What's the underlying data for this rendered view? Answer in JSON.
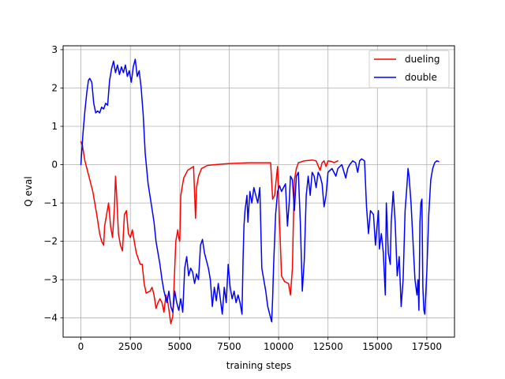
{
  "chart_data": {
    "type": "line",
    "title": "",
    "xlabel": "training steps",
    "ylabel": "Q eval",
    "xlim": [
      -900,
      18900
    ],
    "ylim": [
      -4.5,
      3.1
    ],
    "xticks": [
      0,
      2500,
      5000,
      7500,
      10000,
      12500,
      15000,
      17500
    ],
    "xtick_labels": [
      "0",
      "2500",
      "5000",
      "7500",
      "10000",
      "12500",
      "15000",
      "17500"
    ],
    "yticks": [
      -4,
      -3,
      -2,
      -1,
      0,
      1,
      2,
      3
    ],
    "ytick_labels": [
      "−4",
      "−3",
      "−2",
      "−1",
      "0",
      "1",
      "2",
      "3"
    ],
    "grid": true,
    "legend": "top-right",
    "series": [
      {
        "name": "dueling",
        "color": "#ff0000",
        "points": [
          [
            0,
            0.6
          ],
          [
            80,
            0.5
          ],
          [
            200,
            0.1
          ],
          [
            400,
            -0.3
          ],
          [
            600,
            -0.7
          ],
          [
            800,
            -1.3
          ],
          [
            950,
            -1.8
          ],
          [
            1050,
            -2.0
          ],
          [
            1150,
            -2.1
          ],
          [
            1200,
            -1.6
          ],
          [
            1300,
            -1.3
          ],
          [
            1400,
            -1.0
          ],
          [
            1500,
            -1.6
          ],
          [
            1600,
            -1.9
          ],
          [
            1700,
            -1.1
          ],
          [
            1750,
            -0.3
          ],
          [
            1800,
            -0.7
          ],
          [
            1900,
            -1.8
          ],
          [
            2000,
            -2.1
          ],
          [
            2100,
            -2.25
          ],
          [
            2200,
            -1.3
          ],
          [
            2300,
            -1.2
          ],
          [
            2400,
            -1.8
          ],
          [
            2500,
            -1.9
          ],
          [
            2600,
            -1.7
          ],
          [
            2700,
            -2.0
          ],
          [
            2800,
            -2.3
          ],
          [
            3000,
            -2.6
          ],
          [
            3100,
            -2.6
          ],
          [
            3200,
            -3.1
          ],
          [
            3300,
            -3.35
          ],
          [
            3500,
            -3.3
          ],
          [
            3600,
            -3.2
          ],
          [
            3700,
            -3.4
          ],
          [
            3800,
            -3.75
          ],
          [
            3900,
            -3.6
          ],
          [
            4000,
            -3.5
          ],
          [
            4100,
            -3.6
          ],
          [
            4200,
            -3.85
          ],
          [
            4300,
            -3.4
          ],
          [
            4400,
            -3.6
          ],
          [
            4550,
            -4.15
          ],
          [
            4650,
            -3.95
          ],
          [
            4700,
            -3.3
          ],
          [
            4800,
            -2.0
          ],
          [
            4900,
            -1.7
          ],
          [
            4950,
            -1.9
          ],
          [
            5000,
            -2.0
          ],
          [
            5050,
            -0.8
          ],
          [
            5200,
            -0.35
          ],
          [
            5400,
            -0.15
          ],
          [
            5600,
            -0.08
          ],
          [
            5700,
            -0.05
          ],
          [
            5800,
            -1.4
          ],
          [
            5850,
            -0.6
          ],
          [
            5950,
            -0.3
          ],
          [
            6100,
            -0.1
          ],
          [
            6400,
            -0.02
          ],
          [
            6800,
            0.0
          ],
          [
            7500,
            0.03
          ],
          [
            8000,
            0.04
          ],
          [
            8500,
            0.05
          ],
          [
            9000,
            0.05
          ],
          [
            9600,
            0.05
          ],
          [
            9700,
            -0.9
          ],
          [
            9800,
            -0.8
          ],
          [
            9900,
            -0.3
          ],
          [
            9950,
            -0.05
          ],
          [
            10050,
            -1.5
          ],
          [
            10150,
            -2.9
          ],
          [
            10300,
            -3.05
          ],
          [
            10500,
            -3.1
          ],
          [
            10600,
            -3.4
          ],
          [
            10700,
            -2.7
          ],
          [
            10750,
            -1.5
          ],
          [
            10800,
            -0.4
          ],
          [
            10900,
            -0.1
          ],
          [
            11000,
            0.05
          ],
          [
            11300,
            0.1
          ],
          [
            11700,
            0.12
          ],
          [
            11900,
            0.1
          ],
          [
            12100,
            -0.15
          ],
          [
            12200,
            0.05
          ],
          [
            12300,
            0.1
          ],
          [
            12400,
            -0.05
          ],
          [
            12500,
            0.1
          ],
          [
            12700,
            0.08
          ],
          [
            12800,
            0.05
          ],
          [
            13000,
            0.1
          ]
        ]
      },
      {
        "name": "double",
        "color": "#0000ff",
        "points": [
          [
            0,
            0.0
          ],
          [
            100,
            0.8
          ],
          [
            200,
            1.4
          ],
          [
            300,
            1.9
          ],
          [
            380,
            2.2
          ],
          [
            450,
            2.25
          ],
          [
            550,
            2.15
          ],
          [
            650,
            1.6
          ],
          [
            750,
            1.35
          ],
          [
            850,
            1.4
          ],
          [
            950,
            1.35
          ],
          [
            1050,
            1.5
          ],
          [
            1150,
            1.45
          ],
          [
            1250,
            1.6
          ],
          [
            1350,
            1.55
          ],
          [
            1450,
            2.2
          ],
          [
            1550,
            2.5
          ],
          [
            1650,
            2.7
          ],
          [
            1750,
            2.4
          ],
          [
            1850,
            2.6
          ],
          [
            1950,
            2.35
          ],
          [
            2050,
            2.55
          ],
          [
            2150,
            2.4
          ],
          [
            2250,
            2.6
          ],
          [
            2350,
            2.3
          ],
          [
            2450,
            2.45
          ],
          [
            2550,
            2.15
          ],
          [
            2650,
            2.55
          ],
          [
            2750,
            2.75
          ],
          [
            2850,
            2.3
          ],
          [
            2950,
            2.45
          ],
          [
            3050,
            2.0
          ],
          [
            3150,
            1.3
          ],
          [
            3250,
            0.3
          ],
          [
            3400,
            -0.5
          ],
          [
            3550,
            -1.0
          ],
          [
            3700,
            -1.5
          ],
          [
            3800,
            -2.0
          ],
          [
            3900,
            -2.3
          ],
          [
            4000,
            -2.6
          ],
          [
            4100,
            -3.0
          ],
          [
            4200,
            -3.3
          ],
          [
            4350,
            -3.6
          ],
          [
            4450,
            -3.3
          ],
          [
            4550,
            -3.7
          ],
          [
            4650,
            -3.85
          ],
          [
            4750,
            -3.3
          ],
          [
            4850,
            -3.6
          ],
          [
            4950,
            -3.8
          ],
          [
            5050,
            -3.5
          ],
          [
            5150,
            -3.85
          ],
          [
            5250,
            -2.7
          ],
          [
            5350,
            -2.4
          ],
          [
            5450,
            -2.9
          ],
          [
            5550,
            -2.7
          ],
          [
            5650,
            -2.8
          ],
          [
            5750,
            -3.1
          ],
          [
            5850,
            -2.85
          ],
          [
            5950,
            -3.0
          ],
          [
            6050,
            -2.1
          ],
          [
            6150,
            -1.95
          ],
          [
            6250,
            -2.3
          ],
          [
            6350,
            -2.5
          ],
          [
            6450,
            -2.7
          ],
          [
            6550,
            -3.0
          ],
          [
            6650,
            -3.7
          ],
          [
            6750,
            -3.2
          ],
          [
            6850,
            -3.55
          ],
          [
            6950,
            -3.1
          ],
          [
            7050,
            -3.5
          ],
          [
            7150,
            -3.9
          ],
          [
            7250,
            -3.2
          ],
          [
            7350,
            -3.6
          ],
          [
            7450,
            -2.6
          ],
          [
            7550,
            -3.2
          ],
          [
            7650,
            -3.5
          ],
          [
            7750,
            -3.3
          ],
          [
            7850,
            -3.6
          ],
          [
            7950,
            -3.4
          ],
          [
            8050,
            -3.6
          ],
          [
            8150,
            -3.9
          ],
          [
            8200,
            -2.5
          ],
          [
            8250,
            -1.6
          ],
          [
            8300,
            -1.2
          ],
          [
            8400,
            -0.8
          ],
          [
            8450,
            -1.5
          ],
          [
            8550,
            -0.7
          ],
          [
            8650,
            -1.0
          ],
          [
            8750,
            -0.6
          ],
          [
            8850,
            -0.8
          ],
          [
            8950,
            -1.0
          ],
          [
            9050,
            -0.6
          ],
          [
            9150,
            -2.7
          ],
          [
            9250,
            -3.0
          ],
          [
            9350,
            -3.3
          ],
          [
            9450,
            -3.7
          ],
          [
            9550,
            -3.9
          ],
          [
            9650,
            -4.1
          ],
          [
            9700,
            -3.5
          ],
          [
            9750,
            -2.6
          ],
          [
            9850,
            -1.3
          ],
          [
            9950,
            -0.7
          ],
          [
            10050,
            -0.55
          ],
          [
            10150,
            -0.7
          ],
          [
            10250,
            -0.6
          ],
          [
            10350,
            -0.5
          ],
          [
            10450,
            -1.6
          ],
          [
            10550,
            -0.9
          ],
          [
            10600,
            -0.3
          ],
          [
            10700,
            -0.4
          ],
          [
            10800,
            -1.2
          ],
          [
            10900,
            -0.3
          ],
          [
            11000,
            -0.2
          ],
          [
            11100,
            -1.5
          ],
          [
            11200,
            -3.3
          ],
          [
            11300,
            -2.5
          ],
          [
            11400,
            -0.8
          ],
          [
            11500,
            -0.3
          ],
          [
            11600,
            -0.8
          ],
          [
            11700,
            -0.2
          ],
          [
            11800,
            -0.3
          ],
          [
            11900,
            -0.6
          ],
          [
            12000,
            -0.2
          ],
          [
            12100,
            -0.3
          ],
          [
            12200,
            -0.5
          ],
          [
            12300,
            -1.1
          ],
          [
            12400,
            -0.8
          ],
          [
            12500,
            -0.2
          ],
          [
            12700,
            -0.1
          ],
          [
            12900,
            -0.3
          ],
          [
            13000,
            -0.1
          ],
          [
            13200,
            0.0
          ],
          [
            13400,
            -0.35
          ],
          [
            13500,
            -0.1
          ],
          [
            13600,
            0.0
          ],
          [
            13750,
            0.1
          ],
          [
            13900,
            0.05
          ],
          [
            14000,
            -0.2
          ],
          [
            14100,
            0.1
          ],
          [
            14200,
            0.15
          ],
          [
            14350,
            0.1
          ],
          [
            14450,
            -1.1
          ],
          [
            14550,
            -1.8
          ],
          [
            14650,
            -1.2
          ],
          [
            14800,
            -1.3
          ],
          [
            14900,
            -2.1
          ],
          [
            15000,
            -1.5
          ],
          [
            15050,
            -1.2
          ],
          [
            15100,
            -2.2
          ],
          [
            15200,
            -1.8
          ],
          [
            15300,
            -2.3
          ],
          [
            15400,
            -3.4
          ],
          [
            15450,
            -1.0
          ],
          [
            15550,
            -2.3
          ],
          [
            15650,
            -2.6
          ],
          [
            15700,
            -1.5
          ],
          [
            15800,
            -0.7
          ],
          [
            15900,
            -1.5
          ],
          [
            16000,
            -2.9
          ],
          [
            16100,
            -2.4
          ],
          [
            16200,
            -3.7
          ],
          [
            16300,
            -3.0
          ],
          [
            16400,
            -1.2
          ],
          [
            16500,
            -0.5
          ],
          [
            16550,
            -0.1
          ],
          [
            16600,
            -0.3
          ],
          [
            16700,
            -1.0
          ],
          [
            16800,
            -2.0
          ],
          [
            16900,
            -3.0
          ],
          [
            17000,
            -3.4
          ],
          [
            17050,
            -3.0
          ],
          [
            17100,
            -3.8
          ],
          [
            17150,
            -1.5
          ],
          [
            17200,
            -1.0
          ],
          [
            17250,
            -0.9
          ],
          [
            17300,
            -3.2
          ],
          [
            17350,
            -3.8
          ],
          [
            17400,
            -3.9
          ],
          [
            17500,
            -2.8
          ],
          [
            17600,
            -1.3
          ],
          [
            17700,
            -0.4
          ],
          [
            17800,
            -0.1
          ],
          [
            17900,
            0.05
          ],
          [
            18000,
            0.1
          ],
          [
            18100,
            0.08
          ]
        ]
      }
    ]
  }
}
